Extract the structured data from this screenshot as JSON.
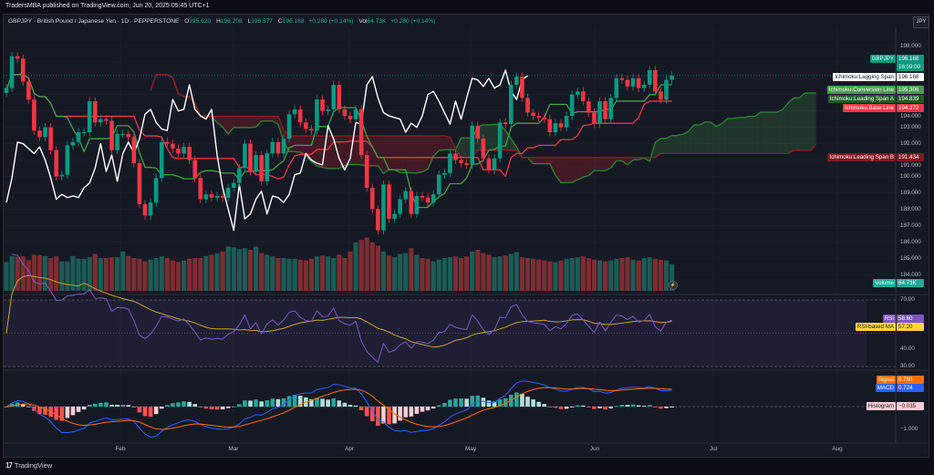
{
  "header": {
    "published": "TradersMBA published on TradingView.com, Jun 20, 2025 05:45 UTC+1"
  },
  "legend": {
    "symbol": "GBPJPY · British Pound / Japanese Yen · 1D · PEPPERSTONE",
    "o_label": "O",
    "o": "195.620",
    "h_label": "H",
    "h": "196.208",
    "l_label": "L",
    "l": "195.577",
    "c_label": "C",
    "c": "196.168",
    "change": "+0.280 (+0.14%)",
    "vol_label": "Vol",
    "vol": "64.73K",
    "vol_change": "+0.280 (+0.14%)"
  },
  "currency_button": "JPY",
  "price_tags": [
    {
      "name": "GBPJPY",
      "value": "196.168",
      "sub": "16:09:00",
      "bg": "#089981",
      "fg": "#ffffff"
    },
    {
      "name": "Ichimoku:Lagging Span",
      "value": "196.168",
      "bg": "#ffffff",
      "fg": "#131722"
    },
    {
      "name": "Ichimoku:Conversion Line",
      "value": "195.306",
      "bg": "#43a047",
      "fg": "#ffffff"
    },
    {
      "name": "Ichimoku:Leading Span A",
      "value": "194.839",
      "bg": "#1b5e20",
      "fg": "#ffffff"
    },
    {
      "name": "Ichimoku:Base Line",
      "value": "194.372",
      "bg": "#f23645",
      "fg": "#ffffff"
    },
    {
      "name": "Ichimoku:Leading Span B",
      "value": "191.434",
      "bg": "#801922",
      "fg": "#ffffff"
    },
    {
      "name": "Volume",
      "value": "64.73K",
      "bg": "#26a69a",
      "fg": "#ffffff"
    },
    {
      "name": "RSI",
      "value": "58.60",
      "bg": "#7e57c2",
      "fg": "#ffffff"
    },
    {
      "name": "RSI-based MA",
      "value": "57.20",
      "bg": "#fdd835",
      "fg": "#131722"
    },
    {
      "name": "Signal",
      "value": "0.760",
      "bg": "#ff6d00",
      "fg": "#ffffff"
    },
    {
      "name": "MACD",
      "value": "0.724",
      "bg": "#2962ff",
      "fg": "#ffffff"
    },
    {
      "name": "Histogram",
      "value": "−0.035",
      "bg": "#ffcdd2",
      "fg": "#131722"
    }
  ],
  "event_marker_icon": "lightning-icon",
  "logo_text": "TradingView",
  "colors": {
    "up": "#089981",
    "down": "#f23645",
    "vol_up": "#1d5b55",
    "vol_down": "#7c2d33",
    "conversion": "#43a047",
    "base": "#f23645",
    "lagging": "#ffffff",
    "span_a": "#2e7d32",
    "span_b": "#8c1c24",
    "cloud_up": "rgba(67,160,71,0.22)",
    "cloud_down": "rgba(150,30,40,0.35)",
    "rsi": "#7e57c2",
    "rsi_ma": "#c9a227",
    "macd": "#2962ff",
    "signal": "#ff6d00",
    "hist_up_strong": "#26a69a",
    "hist_up_weak": "#b2dfdb",
    "hist_down_strong": "#ff5252",
    "hist_down_weak": "#ffcdd2"
  },
  "chart_data": {
    "type": "candlestick",
    "title": "GBPJPY · British Pound / Japanese Yen · 1D · PEPPERSTONE",
    "x_ticks": [
      "Feb",
      "Mar",
      "Apr",
      "May",
      "Jun",
      "Jul",
      "Aug"
    ],
    "y_ticks": [
      "198.000",
      "194.000",
      "193.000",
      "192.000",
      "191.000",
      "190.000",
      "189.000",
      "188.000",
      "187.000",
      "186.000",
      "185.000",
      "184.000"
    ],
    "ylim": [
      184,
      198
    ],
    "rsi_ticks": [
      "70.00",
      "40.00",
      "30.00"
    ],
    "rsi_ylim": [
      30,
      70
    ],
    "macd_ticks": [
      "−1.000"
    ],
    "grid": true,
    "closes": [
      195.4,
      197.35,
      197.2,
      195.8,
      194.7,
      192.8,
      192.4,
      193.0,
      191.6,
      190.0,
      190.1,
      191.9,
      192.1,
      192.7,
      192.7,
      194.6,
      193.3,
      193.5,
      193.4,
      191.6,
      192.6,
      192.6,
      192.4,
      190.8,
      188.3,
      187.6,
      188.4,
      189.9,
      192.1,
      192.0,
      191.7,
      191.4,
      191.8,
      191.0,
      189.9,
      188.6,
      188.9,
      188.7,
      188.8,
      188.7,
      189.3,
      189.6,
      190.5,
      192.0,
      190.3,
      191.3,
      189.7,
      191.4,
      192.1,
      191.4,
      192.3,
      193.8,
      194.1,
      193.3,
      192.9,
      192.8,
      194.7,
      194.0,
      194.1,
      195.6,
      194.1,
      193.7,
      193.5,
      194.1,
      191.3,
      189.3,
      188.0,
      186.7,
      189.5,
      187.4,
      187.7,
      188.6,
      189.1,
      187.7,
      188.8,
      188.7,
      188.4,
      188.9,
      190.1,
      190.2,
      191.4,
      191.0,
      190.8,
      190.7,
      193.1,
      192.3,
      191.1,
      190.4,
      191.1,
      193.3,
      193.2,
      195.6,
      196.1,
      194.8,
      193.9,
      193.7,
      193.6,
      193.5,
      192.7,
      193.25,
      193.0,
      193.7,
      195.0,
      195.2,
      194.6,
      193.9,
      193.2,
      194.6,
      193.5,
      194.8,
      196.0,
      195.9,
      195.5,
      196.0,
      195.4,
      195.6,
      196.5,
      195.2,
      194.7,
      195.9,
      196.168
    ],
    "volumes_k": [
      70,
      85,
      83,
      84,
      75,
      88,
      87,
      85,
      80,
      84,
      72,
      72,
      85,
      78,
      78,
      82,
      90,
      80,
      80,
      82,
      82,
      96,
      85,
      80,
      78,
      72,
      76,
      80,
      84,
      80,
      74,
      70,
      74,
      78,
      80,
      80,
      85,
      88,
      92,
      96,
      108,
      106,
      102,
      104,
      100,
      108,
      92,
      88,
      84,
      80,
      80,
      78,
      78,
      76,
      74,
      78,
      84,
      86,
      84,
      80,
      88,
      80,
      96,
      118,
      124,
      130,
      118,
      110,
      96,
      86,
      82,
      90,
      92,
      104,
      88,
      80,
      78,
      72,
      76,
      80,
      82,
      84,
      80,
      84,
      96,
      100,
      92,
      88,
      82,
      84,
      86,
      90,
      94,
      82,
      80,
      78,
      76,
      74,
      72,
      70,
      74,
      78,
      80,
      82,
      84,
      80,
      76,
      74,
      72,
      74,
      78,
      80,
      82,
      76,
      74,
      80,
      82,
      78,
      76,
      74,
      64.73
    ]
  }
}
